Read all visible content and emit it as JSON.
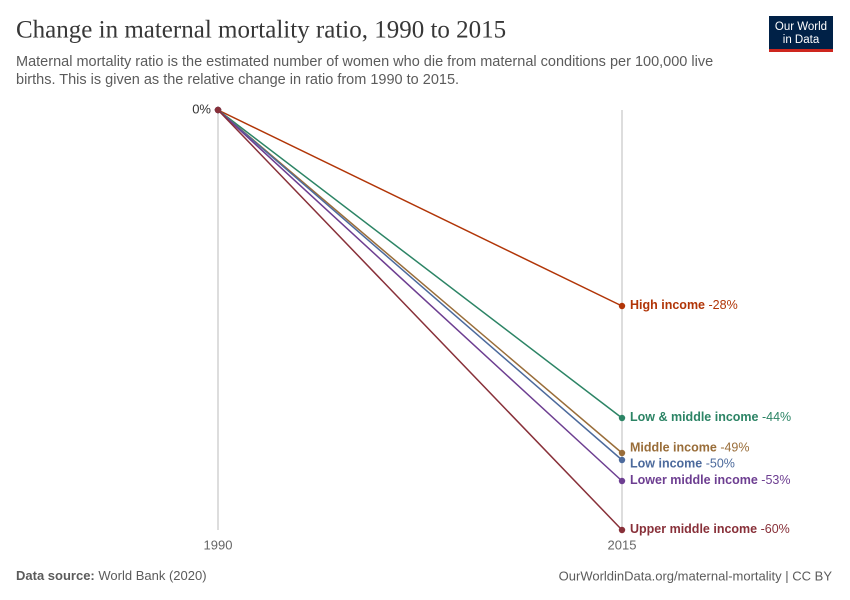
{
  "chart_data": {
    "type": "slope",
    "title": "Change in maternal mortality ratio, 1990 to 2015",
    "subtitle": [
      "Maternal mortality ratio is the estimated number of women who die from maternal conditions per 100,000 live",
      "births. This is given as the relative change in ratio from 1990 to 2015."
    ],
    "x": [
      1990,
      2015
    ],
    "ylim": [
      -60,
      0
    ],
    "yticks": [
      {
        "value": 0,
        "label": "0%"
      }
    ],
    "series": [
      {
        "name": "High income",
        "color": "#b13507",
        "values": [
          0,
          -28
        ],
        "value_labels": [
          null,
          "-28%"
        ]
      },
      {
        "name": "Low & middle income",
        "color": "#2c8465",
        "values": [
          0,
          -44
        ],
        "value_labels": [
          null,
          "-44%"
        ]
      },
      {
        "name": "Middle income",
        "color": "#996d39",
        "values": [
          0,
          -49
        ],
        "value_labels": [
          null,
          "-49%"
        ]
      },
      {
        "name": "Low income",
        "color": "#4c6a9c",
        "values": [
          0,
          -50
        ],
        "value_labels": [
          null,
          "-50%"
        ]
      },
      {
        "name": "Lower middle income",
        "color": "#6d3e91",
        "values": [
          0,
          -53
        ],
        "value_labels": [
          null,
          "-53%"
        ]
      },
      {
        "name": "Upper middle income",
        "color": "#883039",
        "values": [
          0,
          -60
        ],
        "value_labels": [
          null,
          "-60%"
        ]
      }
    ],
    "source_label": "Data source:",
    "source": "World Bank (2020)",
    "url": "OurWorldinData.org/maternal-mortality | CC BY",
    "logo": [
      "Our World",
      "in Data"
    ]
  }
}
